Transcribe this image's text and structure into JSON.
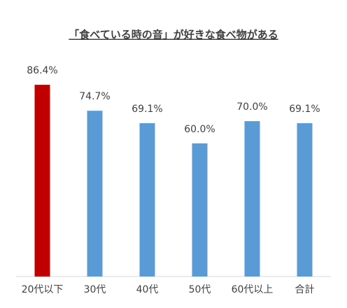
{
  "chart_data": {
    "type": "bar",
    "title": "「食べている時の音」が好きな食べ物がある",
    "categories": [
      "20代以下",
      "30代",
      "40代",
      "50代",
      "60代以上",
      "合計"
    ],
    "values": [
      86.4,
      74.7,
      69.1,
      60.0,
      70.0,
      69.1
    ],
    "value_labels": [
      "86.4%",
      "74.7%",
      "69.1%",
      "60.0%",
      "70.0%",
      "69.1%"
    ],
    "colors": [
      "#c00000",
      "#5b9bd5",
      "#5b9bd5",
      "#5b9bd5",
      "#5b9bd5",
      "#5b9bd5"
    ],
    "ylim": [
      0,
      100
    ]
  }
}
